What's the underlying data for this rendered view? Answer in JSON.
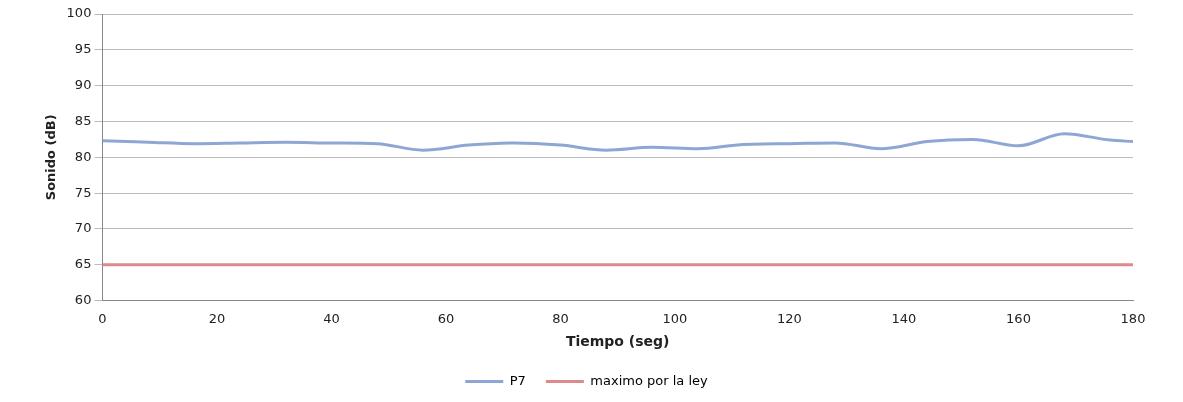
{
  "chart_data": {
    "type": "line",
    "xlabel": "Tiempo (seg)",
    "ylabel": "Sonido (dB)",
    "xlim": [
      0,
      180
    ],
    "xticks": [
      0,
      20,
      40,
      60,
      80,
      100,
      120,
      140,
      160,
      180
    ],
    "ylim": [
      60,
      100
    ],
    "yticks": [
      60,
      65,
      70,
      75,
      80,
      85,
      90,
      95,
      100
    ],
    "grid": "y",
    "legend": "bottom",
    "marker": "none",
    "line_style": "solid",
    "series": [
      {
        "name": "P7",
        "color": "#8ea6d4",
        "x": [
          0,
          8,
          16,
          24,
          32,
          40,
          48,
          56,
          64,
          72,
          80,
          88,
          96,
          104,
          112,
          120,
          128,
          136,
          144,
          152,
          160,
          168,
          176,
          180
        ],
        "values": [
          82.3,
          82.1,
          81.9,
          82.0,
          82.1,
          82.0,
          81.9,
          81.0,
          81.7,
          82.0,
          81.7,
          81.0,
          81.4,
          81.2,
          81.8,
          81.9,
          82.0,
          81.2,
          82.2,
          82.5,
          81.6,
          83.3,
          82.4,
          82.2
        ]
      },
      {
        "name": "maximo por la ley",
        "color": "#dd8a8a",
        "x": [
          0,
          180
        ],
        "values": [
          65,
          65
        ]
      }
    ]
  }
}
